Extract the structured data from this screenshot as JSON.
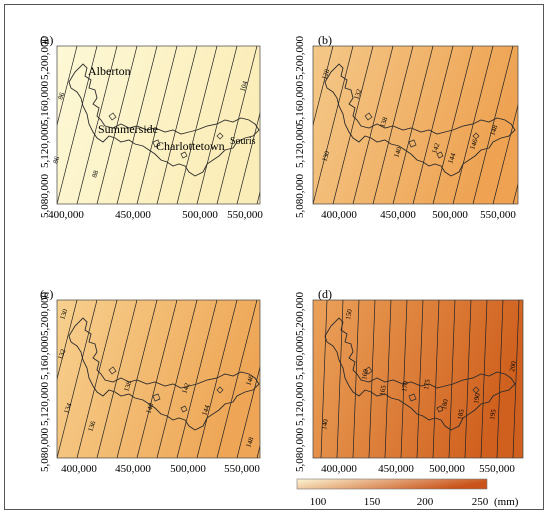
{
  "colors": {
    "scale_start": "#fdf7d4",
    "scale_end": "#c9521a",
    "coastline": "#2b2b2b",
    "isoline": "#222222"
  },
  "x_ticks": [
    "400,000",
    "450,000",
    "500,000",
    "550,000"
  ],
  "y_ticks": [
    "5,080,000",
    "5,120,000",
    "5,160,000",
    "5,200,000"
  ],
  "panels": [
    {
      "label": "(a)",
      "fill_start": "#fdf8d6",
      "fill_end": "#fbedb8",
      "places": [
        "Alberton",
        "Summerside",
        "Charlottetown",
        "Souris"
      ],
      "contour_labels": [
        "86",
        "88",
        "86",
        "104"
      ]
    },
    {
      "label": "(b)",
      "fill_start": "#f4c888",
      "fill_end": "#eea252",
      "places": [],
      "contour_labels": [
        "128",
        "130",
        "132",
        "138",
        "140",
        "142",
        "144",
        "146",
        "148"
      ]
    },
    {
      "label": "(c)",
      "fill_start": "#f7d08e",
      "fill_end": "#eea656",
      "places": [],
      "contour_labels": [
        "130",
        "132",
        "134",
        "136",
        "138",
        "140",
        "142",
        "144",
        "146",
        "148"
      ]
    },
    {
      "label": "(d)",
      "fill_start": "#eba25a",
      "fill_end": "#d0601e",
      "places": [],
      "contour_labels": [
        "140",
        "150",
        "160",
        "165",
        "170",
        "175",
        "180",
        "185",
        "190",
        "195",
        "200"
      ]
    }
  ],
  "legend": {
    "ticks": [
      "100",
      "150",
      "200",
      "250"
    ],
    "unit": "(mm)"
  }
}
